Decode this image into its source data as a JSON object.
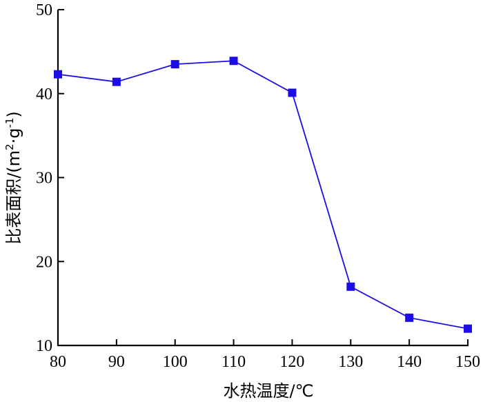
{
  "chart_data": {
    "type": "line",
    "title": "",
    "xlabel": "水热温度/℃",
    "ylabel_main": "比表面积/(m",
    "ylabel_sup1": "2",
    "ylabel_mid": "·g",
    "ylabel_sup2": "-1",
    "ylabel_end": ")",
    "xlim": [
      80,
      150
    ],
    "ylim": [
      10,
      50
    ],
    "xticks": [
      80,
      90,
      100,
      110,
      120,
      130,
      140,
      150
    ],
    "yticks": [
      10,
      20,
      30,
      40,
      50
    ],
    "grid": false,
    "series": [
      {
        "color": "#1a0de6",
        "x": [
          80,
          90,
          100,
          110,
          120,
          130,
          140,
          150
        ],
        "y": [
          42.3,
          41.4,
          43.5,
          43.9,
          40.1,
          17.0,
          13.3,
          12.0
        ]
      }
    ]
  }
}
